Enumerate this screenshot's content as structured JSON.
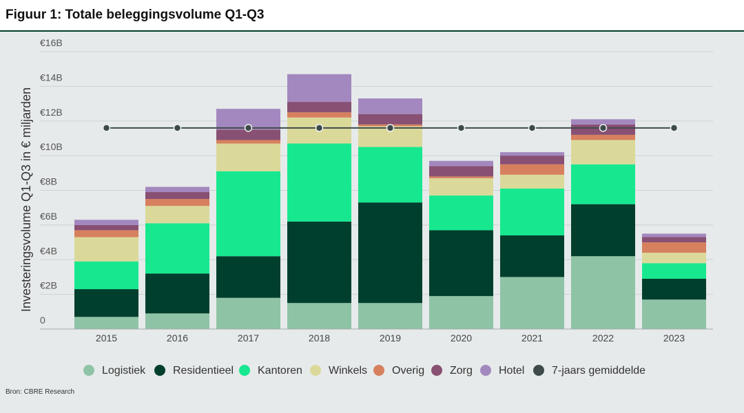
{
  "source": "Bron: CBRE Research",
  "colors": {
    "background": "#e6eaea",
    "header_rule": "#003f2d"
  },
  "chart_data": {
    "type": "bar",
    "stacked": true,
    "title": "Figuur 1: Totale beleggingsvolume Q1-Q3",
    "xlabel": "",
    "ylabel": "Investeringsvolume Q1-Q3 in € miljarden",
    "ylim": [
      0,
      16
    ],
    "yticks": [
      0,
      2,
      4,
      6,
      8,
      10,
      12,
      14,
      16
    ],
    "ytick_labels": [
      "0",
      "€2B",
      "€4B",
      "€6B",
      "€8B",
      "€10B",
      "€12B",
      "€14B",
      "€16B"
    ],
    "grid": true,
    "legend": "bottom",
    "categories": [
      "2015",
      "2016",
      "2017",
      "2018",
      "2019",
      "2020",
      "2021",
      "2022",
      "2023"
    ],
    "series": [
      {
        "name": "Logistiek",
        "color": "#8fc3a6",
        "values": [
          0.7,
          0.9,
          1.8,
          1.5,
          1.5,
          1.9,
          3.0,
          4.2,
          1.7
        ]
      },
      {
        "name": "Residentieel",
        "color": "#003f2d",
        "values": [
          1.6,
          2.3,
          2.4,
          4.7,
          5.8,
          3.8,
          2.4,
          3.0,
          1.2
        ]
      },
      {
        "name": "Kantoren",
        "color": "#17e88f",
        "values": [
          1.6,
          2.9,
          4.9,
          4.5,
          3.2,
          2.0,
          2.7,
          2.3,
          0.9
        ]
      },
      {
        "name": "Winkels",
        "color": "#dbd99a",
        "values": [
          1.4,
          1.0,
          1.6,
          1.5,
          1.2,
          1.0,
          0.8,
          1.4,
          0.6
        ]
      },
      {
        "name": "Overig",
        "color": "#d7805e",
        "values": [
          0.4,
          0.4,
          0.2,
          0.3,
          0.1,
          0.1,
          0.6,
          0.3,
          0.6
        ]
      },
      {
        "name": "Zorg",
        "color": "#885073",
        "values": [
          0.3,
          0.4,
          0.6,
          0.6,
          0.6,
          0.6,
          0.5,
          0.6,
          0.3
        ]
      },
      {
        "name": "Hotel",
        "color": "#a388bf",
        "values": [
          0.3,
          0.3,
          1.2,
          1.6,
          0.9,
          0.3,
          0.2,
          0.3,
          0.2
        ]
      }
    ],
    "line_series": [
      {
        "name": "7-jaars gemiddelde",
        "type": "line",
        "color": "#3e4a4a",
        "values": [
          11.6,
          11.6,
          11.6,
          11.6,
          11.6,
          11.6,
          11.6,
          11.6,
          11.6
        ]
      }
    ]
  }
}
